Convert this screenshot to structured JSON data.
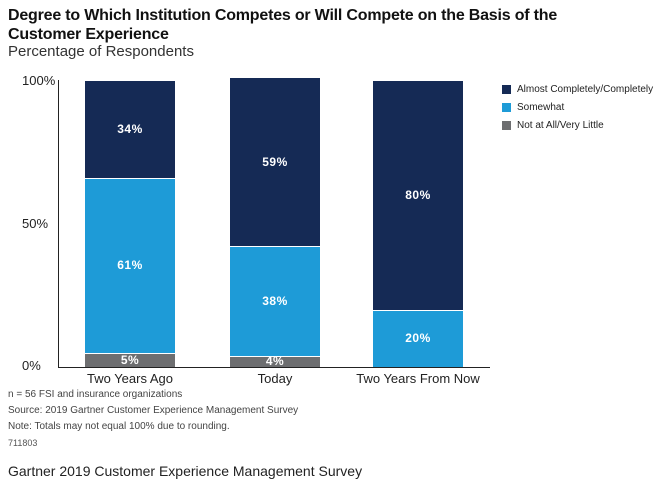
{
  "chart_data": {
    "type": "bar",
    "stacked": true,
    "title": "Degree to Which Institution Competes or Will Compete on the Basis of the Customer Experience",
    "subtitle": "Percentage of Respondents",
    "categories": [
      "Two Years Ago",
      "Today",
      "Two Years From Now"
    ],
    "series": [
      {
        "name": "Not at All/Very Little",
        "color": "#6d6e70",
        "values": [
          5,
          4,
          0
        ],
        "labels": [
          "5%",
          "4%",
          ""
        ]
      },
      {
        "name": "Somewhat",
        "color": "#1e9bd7",
        "values": [
          61,
          38,
          20
        ],
        "labels": [
          "61%",
          "38%",
          "20%"
        ]
      },
      {
        "name": "Almost Completely/Completely",
        "color": "#152a55",
        "values": [
          34,
          59,
          80
        ],
        "labels": [
          "34%",
          "59%",
          "80%"
        ]
      }
    ],
    "ylim": [
      0,
      100
    ],
    "yticks": [
      "0%",
      "50%",
      "100%"
    ],
    "legend_position": "top-right",
    "legend_order": [
      "Almost Completely/Completely",
      "Somewhat",
      "Not at All/Very Little"
    ],
    "grid": false
  },
  "notes": [
    "n = 56 FSI and insurance organizations",
    "Source: 2019 Gartner Customer Experience Management Survey",
    "Note: Totals may not equal 100% due to rounding."
  ],
  "code": "711803",
  "caption": "Gartner 2019 Customer Experience Management Survey"
}
